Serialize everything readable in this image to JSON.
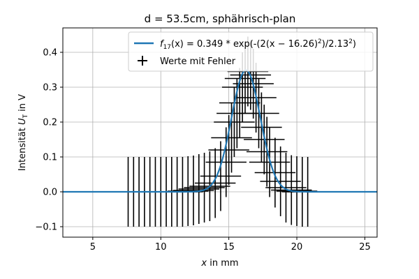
{
  "chart_data": {
    "type": "scatter",
    "title": "d = 53.5cm, sphährisch-plan",
    "xlabel_italic": "x",
    "xlabel_rest": " in mm",
    "ylabel_main": "Intensität ",
    "ylabel_var": "U",
    "ylabel_sub": "T",
    "ylabel_unit": " in V",
    "xlim": [
      2.8,
      25.9
    ],
    "ylim": [
      -0.13,
      0.47
    ],
    "xticks": [
      5,
      10,
      15,
      20,
      25
    ],
    "yticks": [
      -0.1,
      0.0,
      0.1,
      0.2,
      0.3,
      0.4
    ],
    "xtick_labels": [
      "5",
      "10",
      "15",
      "20",
      "25"
    ],
    "ytick_labels": [
      "−0.1",
      "0.0",
      "0.1",
      "0.2",
      "0.3",
      "0.4"
    ],
    "grid": true,
    "legend_position": "top-right",
    "legend": {
      "fit_label_f": "f",
      "fit_label_sub": "17",
      "fit_label_rest": "(x) = 0.349 * exp(-(2(x − 16.26)",
      "fit_label_sup1": "2",
      "fit_label_rest2": ")/2.13",
      "fit_label_sup2": "2",
      "fit_label_end": ")",
      "data_label": "Werte mit Fehler"
    },
    "fit": {
      "amplitude": 0.349,
      "center": 16.26,
      "width": 2.13,
      "color": "#1f77b4"
    },
    "series": [
      {
        "name": "Werte mit Fehler",
        "color": "#000000",
        "y_error": 0.1,
        "x_error": 1.5,
        "points": [
          [
            7.6,
            0.0
          ],
          [
            8.0,
            0.0
          ],
          [
            8.4,
            0.0
          ],
          [
            8.8,
            0.0
          ],
          [
            9.2,
            0.0
          ],
          [
            9.6,
            0.0
          ],
          [
            10.0,
            0.0
          ],
          [
            10.4,
            0.0
          ],
          [
            10.8,
            0.0
          ],
          [
            11.2,
            0.0
          ],
          [
            11.6,
            0.0
          ],
          [
            12.0,
            0.002
          ],
          [
            12.4,
            0.004
          ],
          [
            12.8,
            0.008
          ],
          [
            13.2,
            0.012
          ],
          [
            13.6,
            0.016
          ],
          [
            14.0,
            0.025
          ],
          [
            14.4,
            0.045
          ],
          [
            14.8,
            0.085
          ],
          [
            15.0,
            0.12
          ],
          [
            15.2,
            0.155
          ],
          [
            15.4,
            0.2
          ],
          [
            15.6,
            0.225
          ],
          [
            15.8,
            0.255
          ],
          [
            16.0,
            0.3
          ],
          [
            16.2,
            0.325
          ],
          [
            16.4,
            0.345
          ],
          [
            16.6,
            0.335
          ],
          [
            16.8,
            0.31
          ],
          [
            17.0,
            0.27
          ],
          [
            17.2,
            0.225
          ],
          [
            17.4,
            0.185
          ],
          [
            17.6,
            0.15
          ],
          [
            17.8,
            0.115
          ],
          [
            18.0,
            0.085
          ],
          [
            18.4,
            0.055
          ],
          [
            18.8,
            0.03
          ],
          [
            19.2,
            0.012
          ],
          [
            19.6,
            0.005
          ],
          [
            20.0,
            0.002
          ],
          [
            20.4,
            0.0
          ],
          [
            20.8,
            0.0
          ]
        ]
      }
    ]
  }
}
